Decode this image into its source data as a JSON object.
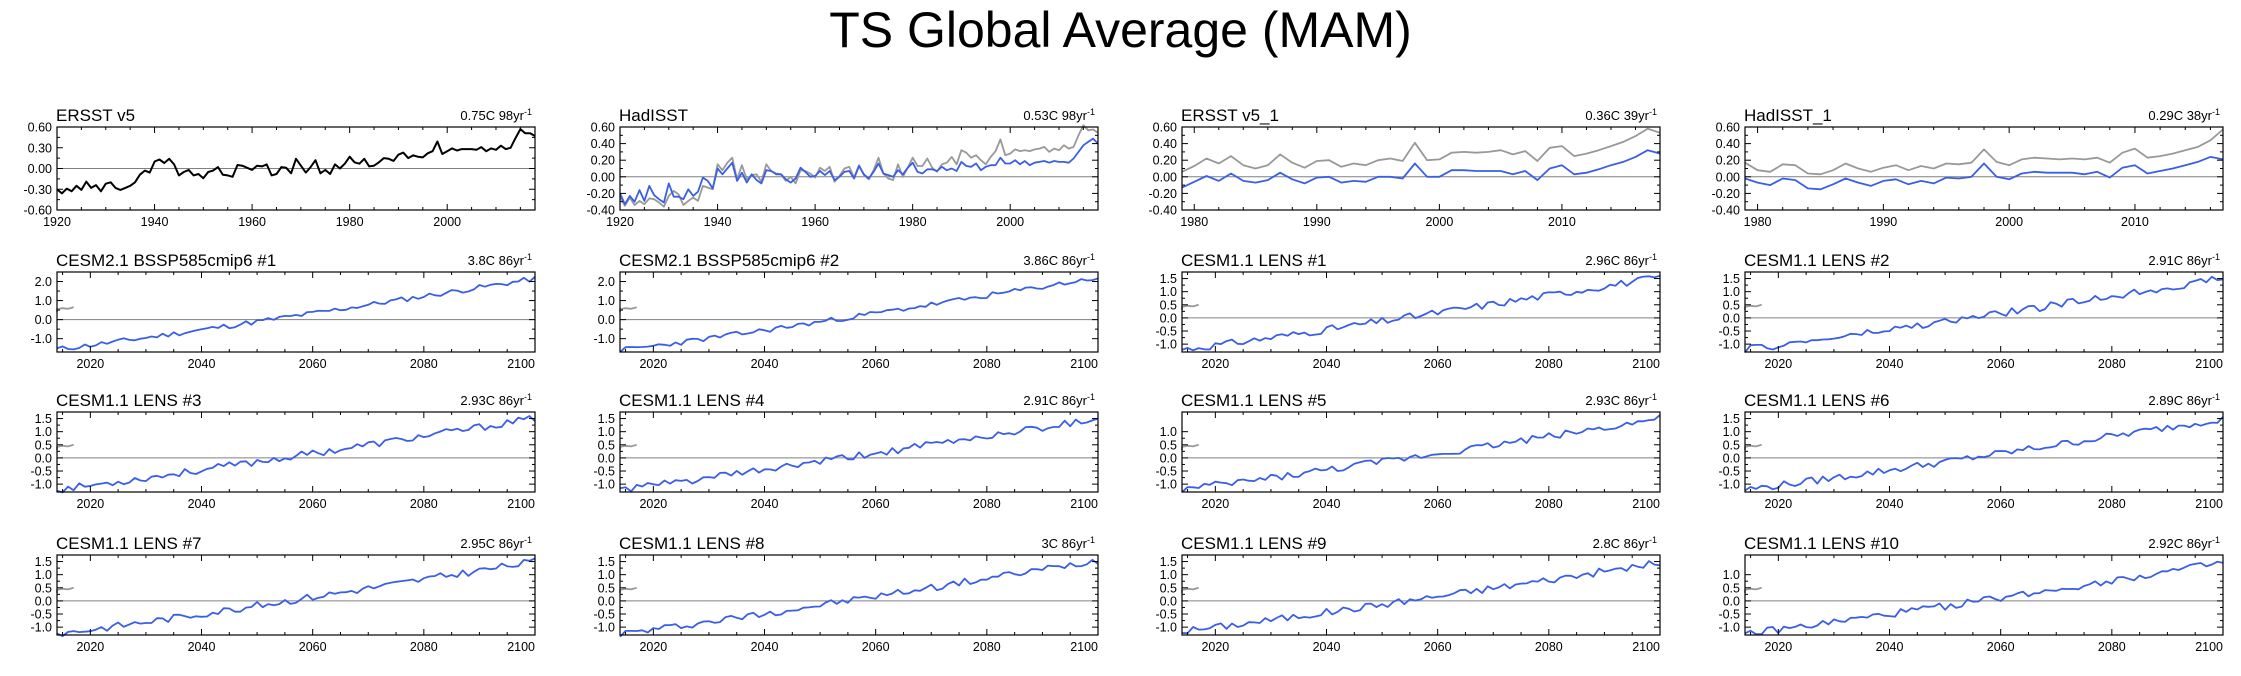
{
  "title": "TS Global Average (MAM)",
  "colors": {
    "observed": "#000000",
    "model": "#3a5fe5",
    "obs_overlay": "#999999",
    "zero_line": "#808080"
  },
  "chart_data": [
    {
      "type": "line",
      "title": "ERSST v5",
      "trend_value": "0.75C 98yr",
      "trend_exp": "-1",
      "xlim": [
        1920,
        2018
      ],
      "ylim": [
        -0.6,
        0.6
      ],
      "xticks": [
        1920,
        1940,
        1960,
        1980,
        2000
      ],
      "yticks": [
        "0.60",
        "0.30",
        "0.00",
        "-0.30",
        "-0.60"
      ],
      "yticks_values": [
        0.6,
        0.3,
        0,
        -0.3,
        -0.6
      ],
      "series": [
        {
          "x0": 1920,
          "dx": 1,
          "color_key": "observed",
          "values": [
            -0.3,
            -0.36,
            -0.29,
            -0.33,
            -0.25,
            -0.31,
            -0.19,
            -0.28,
            -0.24,
            -0.33,
            -0.22,
            -0.2,
            -0.28,
            -0.31,
            -0.28,
            -0.25,
            -0.2,
            -0.09,
            -0.03,
            -0.06,
            0.1,
            0.13,
            0.08,
            0.14,
            0.06,
            -0.1,
            -0.05,
            -0.02,
            -0.1,
            -0.08,
            -0.14,
            -0.05,
            -0.03,
            0.02,
            -0.09,
            -0.1,
            -0.12,
            0.05,
            0.04,
            0.01,
            -0.02,
            0.04,
            0.03,
            0.06,
            -0.1,
            -0.08,
            0.02,
            0.01,
            -0.07,
            0.14,
            0.04,
            -0.06,
            0.02,
            0.12,
            -0.07,
            -0.02,
            -0.08,
            0.06,
            0.0,
            0.07,
            0.17,
            0.09,
            0.07,
            0.14,
            0.03,
            0.04,
            0.09,
            0.15,
            0.14,
            0.11,
            0.2,
            0.23,
            0.15,
            0.19,
            0.17,
            0.16,
            0.22,
            0.25,
            0.39,
            0.21,
            0.25,
            0.29,
            0.26,
            0.28,
            0.28,
            0.28,
            0.27,
            0.31,
            0.25,
            0.29,
            0.27,
            0.33,
            0.28,
            0.3,
            0.44,
            0.57,
            0.51,
            0.51,
            0.47
          ]
        }
      ]
    },
    {
      "type": "line",
      "title": "HadISST",
      "trend_value": "0.53C 98yr",
      "trend_exp": "-1",
      "xlim": [
        1920,
        2018
      ],
      "ylim": [
        -0.4,
        0.6
      ],
      "xticks": [
        1920,
        1940,
        1960,
        1980,
        2000
      ],
      "yticks": [
        "0.60",
        "0.40",
        "0.20",
        "0.00",
        "-0.20",
        "-0.40"
      ],
      "yticks_values": [
        0.6,
        0.4,
        0.2,
        0,
        -0.2,
        -0.4
      ],
      "series": [
        {
          "x0": 1920,
          "dx": 1,
          "color_key": "obs_overlay",
          "values": [
            -0.24,
            -0.35,
            -0.25,
            -0.34,
            -0.29,
            -0.33,
            -0.26,
            -0.27,
            -0.31,
            -0.36,
            -0.23,
            -0.17,
            -0.21,
            -0.34,
            -0.29,
            -0.25,
            -0.29,
            -0.11,
            -0.13,
            -0.15,
            0.15,
            0.08,
            0.17,
            0.23,
            -0.03,
            0.14,
            -0.03,
            0.02,
            0.03,
            -0.06,
            0.15,
            0.07,
            0.04,
            0.03,
            -0.05,
            0.0,
            -0.08,
            0.08,
            0.07,
            0.04,
            -0.01,
            0.11,
            0.07,
            0.12,
            -0.06,
            0.01,
            0.1,
            0.12,
            -0.01,
            0.14,
            0.02,
            -0.03,
            0.08,
            0.23,
            0.04,
            -0.02,
            -0.04,
            0.15,
            0.0,
            0.11,
            0.23,
            0.13,
            0.13,
            0.22,
            0.11,
            0.06,
            0.15,
            0.17,
            0.24,
            0.15,
            0.32,
            0.29,
            0.23,
            0.26,
            0.2,
            0.15,
            0.24,
            0.31,
            0.45,
            0.26,
            0.28,
            0.33,
            0.31,
            0.32,
            0.31,
            0.33,
            0.34,
            0.36,
            0.3,
            0.34,
            0.32,
            0.38,
            0.34,
            0.36,
            0.5,
            0.62,
            0.56,
            0.57,
            0.53
          ]
        },
        {
          "x0": 1920,
          "dx": 1,
          "color_key": "model",
          "values": [
            -0.2,
            -0.33,
            -0.23,
            -0.3,
            -0.16,
            -0.29,
            -0.11,
            -0.22,
            -0.27,
            -0.31,
            -0.08,
            -0.24,
            -0.24,
            -0.27,
            -0.15,
            -0.23,
            -0.18,
            -0.01,
            -0.05,
            -0.14,
            0.1,
            0.03,
            0.1,
            0.17,
            -0.05,
            0.05,
            -0.07,
            0.03,
            -0.04,
            -0.08,
            0.08,
            0.07,
            0.03,
            0.03,
            -0.03,
            -0.07,
            -0.02,
            0.11,
            0.06,
            0.0,
            0.01,
            0.07,
            0.02,
            0.07,
            -0.04,
            0.0,
            0.06,
            0.07,
            -0.02,
            0.13,
            0.03,
            -0.02,
            0.06,
            0.16,
            0.04,
            0.02,
            0.0,
            0.08,
            0.03,
            0.11,
            0.17,
            0.06,
            0.04,
            0.09,
            0.09,
            0.07,
            0.12,
            0.08,
            0.1,
            0.07,
            0.18,
            0.13,
            0.12,
            0.16,
            0.08,
            0.12,
            0.14,
            0.14,
            0.23,
            0.16,
            0.16,
            0.2,
            0.15,
            0.19,
            0.14,
            0.17,
            0.18,
            0.19,
            0.17,
            0.19,
            0.18,
            0.18,
            0.17,
            0.22,
            0.3,
            0.38,
            0.42,
            0.46,
            0.4
          ]
        }
      ]
    },
    {
      "type": "line",
      "title": "ERSST v5_1",
      "trend_value": "0.36C 39yr",
      "trend_exp": "-1",
      "xlim": [
        1979,
        2018
      ],
      "ylim": [
        -0.4,
        0.6
      ],
      "xticks": [
        1980,
        1990,
        2000,
        2010
      ],
      "yticks": [
        "0.60",
        "0.40",
        "0.20",
        "0.00",
        "-0.20",
        "-0.40"
      ],
      "yticks_values": [
        0.6,
        0.4,
        0.2,
        0,
        -0.2,
        -0.4
      ],
      "series": [
        {
          "x0": 1979,
          "dx": 1,
          "color_key": "obs_overlay",
          "values": [
            0.06,
            0.13,
            0.22,
            0.16,
            0.25,
            0.14,
            0.1,
            0.14,
            0.27,
            0.17,
            0.11,
            0.19,
            0.2,
            0.12,
            0.16,
            0.14,
            0.2,
            0.22,
            0.19,
            0.41,
            0.2,
            0.21,
            0.29,
            0.3,
            0.29,
            0.3,
            0.32,
            0.27,
            0.31,
            0.19,
            0.35,
            0.37,
            0.25,
            0.28,
            0.32,
            0.37,
            0.42,
            0.49,
            0.58,
            0.53
          ]
        },
        {
          "x0": 1979,
          "dx": 1,
          "color_key": "model",
          "values": [
            -0.13,
            -0.06,
            0.01,
            -0.05,
            0.04,
            -0.05,
            -0.07,
            -0.04,
            0.05,
            -0.03,
            -0.08,
            -0.01,
            0.0,
            -0.07,
            -0.05,
            -0.06,
            0.0,
            0.0,
            -0.02,
            0.16,
            0.0,
            0.0,
            0.08,
            0.08,
            0.07,
            0.07,
            0.07,
            0.03,
            0.07,
            -0.04,
            0.1,
            0.14,
            0.03,
            0.05,
            0.09,
            0.14,
            0.18,
            0.24,
            0.32,
            0.28
          ]
        }
      ]
    },
    {
      "type": "line",
      "title": "HadISST_1",
      "trend_value": "0.29C 38yr",
      "trend_exp": "-1",
      "xlim": [
        1979,
        2017
      ],
      "ylim": [
        -0.4,
        0.6
      ],
      "xticks": [
        1980,
        1990,
        2000,
        2010
      ],
      "yticks": [
        "0.60",
        "0.40",
        "0.20",
        "0.00",
        "-0.20",
        "-0.40"
      ],
      "yticks_values": [
        0.6,
        0.4,
        0.2,
        0,
        -0.2,
        -0.4
      ],
      "series": [
        {
          "x0": 1979,
          "dx": 1,
          "color_key": "obs_overlay",
          "values": [
            0.17,
            0.08,
            0.06,
            0.15,
            0.14,
            0.04,
            0.03,
            0.08,
            0.16,
            0.1,
            0.06,
            0.11,
            0.14,
            0.08,
            0.13,
            0.1,
            0.16,
            0.15,
            0.17,
            0.33,
            0.18,
            0.14,
            0.21,
            0.23,
            0.22,
            0.21,
            0.22,
            0.21,
            0.23,
            0.17,
            0.29,
            0.34,
            0.23,
            0.25,
            0.28,
            0.32,
            0.36,
            0.44,
            0.57
          ]
        },
        {
          "x0": 1979,
          "dx": 1,
          "color_key": "model",
          "values": [
            -0.02,
            -0.07,
            -0.1,
            -0.02,
            -0.04,
            -0.14,
            -0.15,
            -0.09,
            -0.02,
            -0.07,
            -0.11,
            -0.05,
            -0.03,
            -0.09,
            -0.05,
            -0.08,
            -0.01,
            -0.02,
            0.0,
            0.16,
            0.0,
            -0.03,
            0.04,
            0.06,
            0.05,
            0.05,
            0.05,
            0.03,
            0.06,
            -0.01,
            0.11,
            0.14,
            0.04,
            0.07,
            0.1,
            0.14,
            0.18,
            0.24,
            0.21
          ]
        }
      ]
    },
    {
      "type": "line",
      "title": "CESM2.1 BSSP585cmip6 #1",
      "trend_value": "3.8C 86yr",
      "trend_exp": "-1",
      "xlim": [
        2014,
        2100
      ],
      "ylim": [
        -1.7,
        2.5
      ],
      "xticks": [
        2020,
        2040,
        2060,
        2080,
        2100
      ],
      "yticks": [
        "2.0",
        "1.0",
        "0.0",
        "-1.0"
      ],
      "yticks_values": [
        2.0,
        1.0,
        0.0,
        -1.0
      ],
      "model_start": -1.55,
      "model_end": 2.15,
      "seed": 11
    },
    {
      "type": "line",
      "title": "CESM2.1 BSSP585cmip6 #2",
      "trend_value": "3.86C 86yr",
      "trend_exp": "-1",
      "xlim": [
        2014,
        2100
      ],
      "ylim": [
        -1.7,
        2.5
      ],
      "xticks": [
        2020,
        2040,
        2060,
        2080,
        2100
      ],
      "yticks": [
        "2.0",
        "1.0",
        "0.0",
        "-1.0"
      ],
      "yticks_values": [
        2.0,
        1.0,
        0.0,
        -1.0
      ],
      "model_start": -1.6,
      "model_end": 2.2,
      "seed": 23
    },
    {
      "type": "line",
      "title": "CESM1.1 LENS #1",
      "trend_value": "2.96C 86yr",
      "trend_exp": "-1",
      "xlim": [
        2014,
        2100
      ],
      "ylim": [
        -1.3,
        1.75
      ],
      "xticks": [
        2020,
        2040,
        2060,
        2080,
        2100
      ],
      "yticks": [
        "1.5",
        "1.0",
        "0.5",
        "0.0",
        "-0.5",
        "-1.0"
      ],
      "yticks_values": [
        1.5,
        1.0,
        0.5,
        0.0,
        -0.5,
        -1.0
      ],
      "model_start": -1.2,
      "model_end": 1.55,
      "seed": 31
    },
    {
      "type": "line",
      "title": "CESM1.1 LENS #2",
      "trend_value": "2.91C 86yr",
      "trend_exp": "-1",
      "xlim": [
        2014,
        2100
      ],
      "ylim": [
        -1.3,
        1.75
      ],
      "xticks": [
        2020,
        2040,
        2060,
        2080,
        2100
      ],
      "yticks": [
        "1.5",
        "1.0",
        "0.5",
        "0.0",
        "-0.5",
        "-1.0"
      ],
      "yticks_values": [
        1.5,
        1.0,
        0.5,
        0.0,
        -0.5,
        -1.0
      ],
      "model_start": -1.2,
      "model_end": 1.5,
      "seed": 47
    },
    {
      "type": "line",
      "title": "CESM1.1 LENS #3",
      "trend_value": "2.93C 86yr",
      "trend_exp": "-1",
      "xlim": [
        2014,
        2100
      ],
      "ylim": [
        -1.3,
        1.75
      ],
      "xticks": [
        2020,
        2040,
        2060,
        2080,
        2100
      ],
      "yticks": [
        "1.5",
        "1.0",
        "0.5",
        "0.0",
        "-0.5",
        "-1.0"
      ],
      "yticks_values": [
        1.5,
        1.0,
        0.5,
        0.0,
        -0.5,
        -1.0
      ],
      "model_start": -1.2,
      "model_end": 1.5,
      "seed": 53
    },
    {
      "type": "line",
      "title": "CESM1.1 LENS #4",
      "trend_value": "2.91C 86yr",
      "trend_exp": "-1",
      "xlim": [
        2014,
        2100
      ],
      "ylim": [
        -1.3,
        1.75
      ],
      "xticks": [
        2020,
        2040,
        2060,
        2080,
        2100
      ],
      "yticks": [
        "1.5",
        "1.0",
        "0.5",
        "0.0",
        "-0.5",
        "-1.0"
      ],
      "yticks_values": [
        1.5,
        1.0,
        0.5,
        0.0,
        -0.5,
        -1.0
      ],
      "model_start": -1.2,
      "model_end": 1.5,
      "seed": 61
    },
    {
      "type": "line",
      "title": "CESM1.1 LENS #5",
      "trend_value": "2.93C 86yr",
      "trend_exp": "-1",
      "xlim": [
        2014,
        2100
      ],
      "ylim": [
        -1.3,
        1.75
      ],
      "xticks": [
        2020,
        2040,
        2060,
        2080,
        2100
      ],
      "yticks": [
        "1.0",
        "0.5",
        "0.0",
        "-0.5",
        "-1.0"
      ],
      "yticks_values": [
        1.0,
        0.5,
        0.0,
        -0.5,
        -1.0
      ],
      "model_start": -1.2,
      "model_end": 1.5,
      "seed": 73
    },
    {
      "type": "line",
      "title": "CESM1.1 LENS #6",
      "trend_value": "2.89C 86yr",
      "trend_exp": "-1",
      "xlim": [
        2014,
        2100
      ],
      "ylim": [
        -1.3,
        1.75
      ],
      "xticks": [
        2020,
        2040,
        2060,
        2080,
        2100
      ],
      "yticks": [
        "1.5",
        "1.0",
        "0.5",
        "0.0",
        "-0.5",
        "-1.0"
      ],
      "yticks_values": [
        1.5,
        1.0,
        0.5,
        0.0,
        -0.5,
        -1.0
      ],
      "model_start": -1.2,
      "model_end": 1.5,
      "seed": 79
    },
    {
      "type": "line",
      "title": "CESM1.1 LENS #7",
      "trend_value": "2.95C 86yr",
      "trend_exp": "-1",
      "xlim": [
        2014,
        2100
      ],
      "ylim": [
        -1.3,
        1.75
      ],
      "xticks": [
        2020,
        2040,
        2060,
        2080,
        2100
      ],
      "yticks": [
        "1.5",
        "1.0",
        "0.5",
        "0.0",
        "-0.5",
        "-1.0"
      ],
      "yticks_values": [
        1.5,
        1.0,
        0.5,
        0.0,
        -0.5,
        -1.0
      ],
      "model_start": -1.25,
      "model_end": 1.5,
      "seed": 83
    },
    {
      "type": "line",
      "title": "CESM1.1 LENS #8",
      "trend_value": "3C 86yr",
      "trend_exp": "-1",
      "xlim": [
        2014,
        2100
      ],
      "ylim": [
        -1.3,
        1.75
      ],
      "xticks": [
        2020,
        2040,
        2060,
        2080,
        2100
      ],
      "yticks": [
        "1.5",
        "1.0",
        "0.5",
        "0.0",
        "-0.5",
        "-1.0"
      ],
      "yticks_values": [
        1.5,
        1.0,
        0.5,
        0.0,
        -0.5,
        -1.0
      ],
      "model_start": -1.25,
      "model_end": 1.55,
      "seed": 97
    },
    {
      "type": "line",
      "title": "CESM1.1 LENS #9",
      "trend_value": "2.8C 86yr",
      "trend_exp": "-1",
      "xlim": [
        2014,
        2100
      ],
      "ylim": [
        -1.3,
        1.75
      ],
      "xticks": [
        2020,
        2040,
        2060,
        2080,
        2100
      ],
      "yticks": [
        "1.5",
        "1.0",
        "0.5",
        "0.0",
        "-0.5",
        "-1.0"
      ],
      "yticks_values": [
        1.5,
        1.0,
        0.5,
        0.0,
        -0.5,
        -1.0
      ],
      "model_start": -1.15,
      "model_end": 1.45,
      "seed": 101
    },
    {
      "type": "line",
      "title": "CESM1.1 LENS #10",
      "trend_value": "2.92C 86yr",
      "trend_exp": "-1",
      "xlim": [
        2014,
        2100
      ],
      "ylim": [
        -1.3,
        1.75
      ],
      "xticks": [
        2020,
        2040,
        2060,
        2080,
        2100
      ],
      "yticks": [
        "1.0",
        "0.5",
        "0.0",
        "-0.5",
        "-1.0"
      ],
      "yticks_values": [
        1.0,
        0.5,
        0.0,
        -0.5,
        -1.0
      ],
      "model_start": -1.25,
      "model_end": 1.45,
      "seed": 109
    }
  ]
}
